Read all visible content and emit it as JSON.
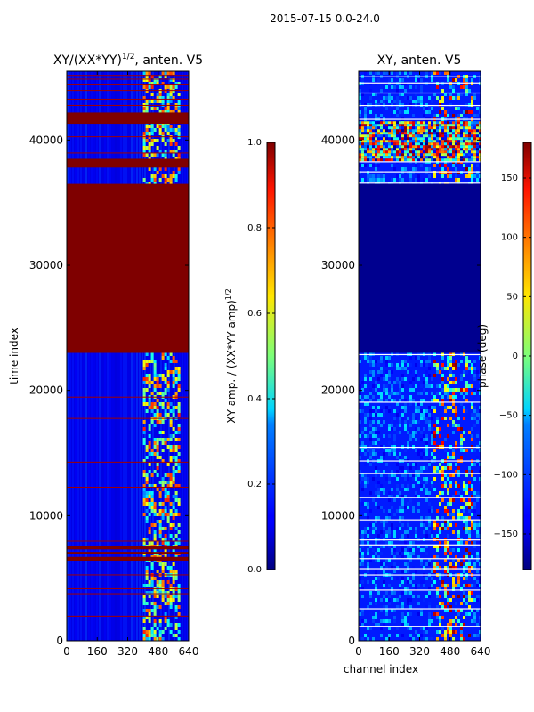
{
  "suptitle": "2015-07-15 0.0-24.0",
  "chart_data": [
    {
      "type": "heatmap",
      "title": "XY/(XX*YY)^{1/2}, anten. V5",
      "title_main": "XY/(XX*YY)",
      "title_exp": "1/2",
      "title_tail": ", anten. V5",
      "xlabel": "",
      "ylabel": "time index",
      "xlim": [
        0,
        640
      ],
      "ylim": [
        0,
        45500
      ],
      "xticks": [
        "0",
        "160",
        "320",
        "480",
        "640"
      ],
      "yticks": [
        "0",
        "10000",
        "20000",
        "30000",
        "40000"
      ],
      "xtick_values": [
        0,
        160,
        320,
        480,
        640
      ],
      "ytick_values": [
        0,
        10000,
        20000,
        30000,
        40000
      ],
      "colormap": "jet",
      "colorbar": {
        "label": "XY amp. / (XX*YY amp)^{1/2}",
        "label_main": "XY amp. / (XX*YY amp)",
        "label_exp": "1/2",
        "range": [
          0.0,
          1.0
        ],
        "ticks": [
          "0.0",
          "0.2",
          "0.4",
          "0.6",
          "0.8",
          "1.0"
        ],
        "tick_values": [
          0.0,
          0.2,
          0.4,
          0.6,
          0.8,
          1.0
        ]
      },
      "saturated_time_ranges": [
        [
          23000,
          36500
        ],
        [
          37800,
          38500
        ],
        [
          41300,
          42200
        ],
        [
          6400,
          6700
        ],
        [
          6900,
          7100
        ],
        [
          7300,
          7600
        ]
      ]
    },
    {
      "type": "heatmap",
      "title": "XY, anten. V5",
      "xlabel": "channel index",
      "ylabel": "",
      "xlim": [
        0,
        640
      ],
      "ylim": [
        0,
        45500
      ],
      "xticks": [
        "0",
        "160",
        "320",
        "480",
        "640"
      ],
      "yticks": [
        "0",
        "10000",
        "20000",
        "30000",
        "40000"
      ],
      "xtick_values": [
        0,
        160,
        320,
        480,
        640
      ],
      "ytick_values": [
        0,
        10000,
        20000,
        30000,
        40000
      ],
      "colormap": "jet",
      "colorbar": {
        "label": "phase (deg)",
        "range": [
          -180,
          180
        ],
        "ticks": [
          "−150",
          "−100",
          "−50",
          "0",
          "50",
          "100",
          "150"
        ],
        "tick_values": [
          -150,
          -100,
          -50,
          0,
          50,
          100,
          150
        ]
      },
      "uniform_phase_time_range": [
        23000,
        36500
      ]
    }
  ]
}
